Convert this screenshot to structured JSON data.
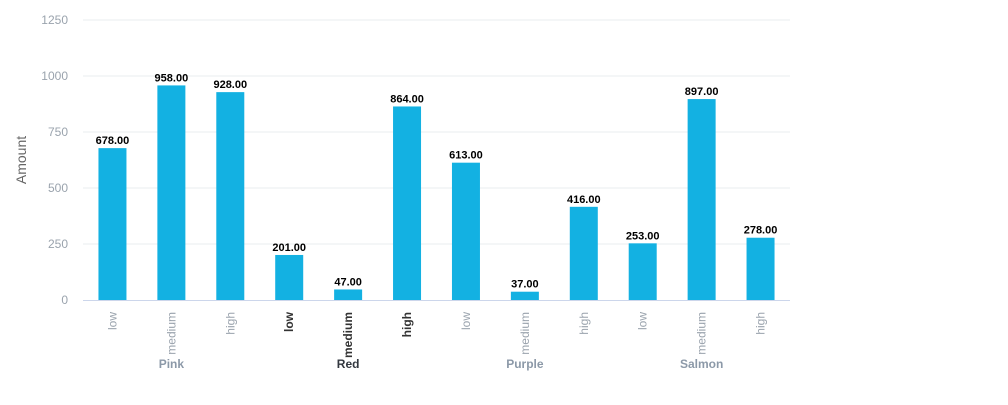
{
  "chart_data": {
    "type": "bar",
    "ylabel": "Amount",
    "ylim": [
      0,
      1250
    ],
    "yticks": [
      0,
      250,
      500,
      750,
      1000,
      1250
    ],
    "grid": true,
    "groups": [
      {
        "label": "Pink",
        "highlighted": false,
        "categories": [
          "low",
          "medium",
          "high"
        ],
        "values": [
          678,
          958,
          928
        ]
      },
      {
        "label": "Red",
        "highlighted": true,
        "categories": [
          "low",
          "medium",
          "high"
        ],
        "values": [
          201,
          47,
          864
        ]
      },
      {
        "label": "Purple",
        "highlighted": false,
        "categories": [
          "low",
          "medium",
          "high"
        ],
        "values": [
          613,
          37,
          416
        ]
      },
      {
        "label": "Salmon",
        "highlighted": false,
        "categories": [
          "low",
          "medium",
          "high"
        ],
        "values": [
          253,
          897,
          278
        ]
      }
    ],
    "value_label_format": "0.00"
  },
  "colors": {
    "bar": "#13b1e2",
    "grid": "#e9ecef",
    "axis_line": "#ccd6eb",
    "tick_label": "#9aa3ad",
    "tick_label_highlight": "#333333",
    "group_label": "#8c99a8",
    "group_label_highlight": "#333840",
    "axis_title": "#666666",
    "value_label": "#000000"
  }
}
